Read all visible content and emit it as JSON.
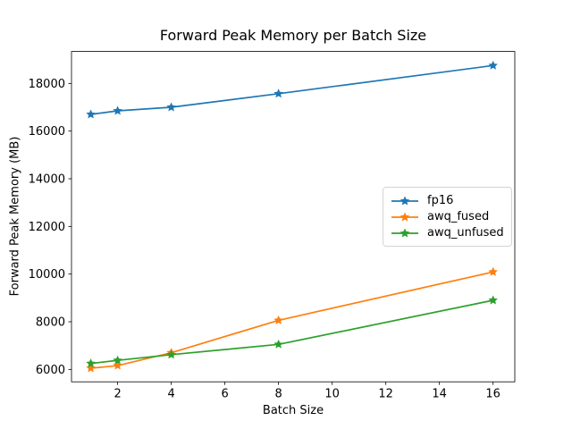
{
  "chart_data": {
    "type": "line",
    "title": "Forward Peak Memory per Batch Size",
    "xlabel": "Batch Size",
    "ylabel": "Forward Peak Memory (MB)",
    "x": [
      1,
      2,
      4,
      8,
      16
    ],
    "series": [
      {
        "name": "fp16",
        "color": "#1f77b4",
        "marker": "star",
        "values": [
          16700,
          16850,
          17000,
          17570,
          18750
        ]
      },
      {
        "name": "awq_fused",
        "color": "#ff7f0e",
        "marker": "star",
        "values": [
          6050,
          6160,
          6700,
          8060,
          10090
        ]
      },
      {
        "name": "awq_unfused",
        "color": "#2ca02c",
        "marker": "star",
        "values": [
          6250,
          6380,
          6620,
          7050,
          8900
        ]
      }
    ],
    "xticks": [
      2,
      4,
      6,
      8,
      10,
      12,
      14,
      16
    ],
    "yticks": [
      6000,
      8000,
      10000,
      12000,
      14000,
      16000,
      18000
    ],
    "xlim": [
      0.28,
      16.81
    ],
    "ylim": [
      5480,
      19340
    ],
    "grid": false,
    "legend_position": "center right",
    "axis_color": "#000000",
    "background_color": "#ffffff"
  }
}
